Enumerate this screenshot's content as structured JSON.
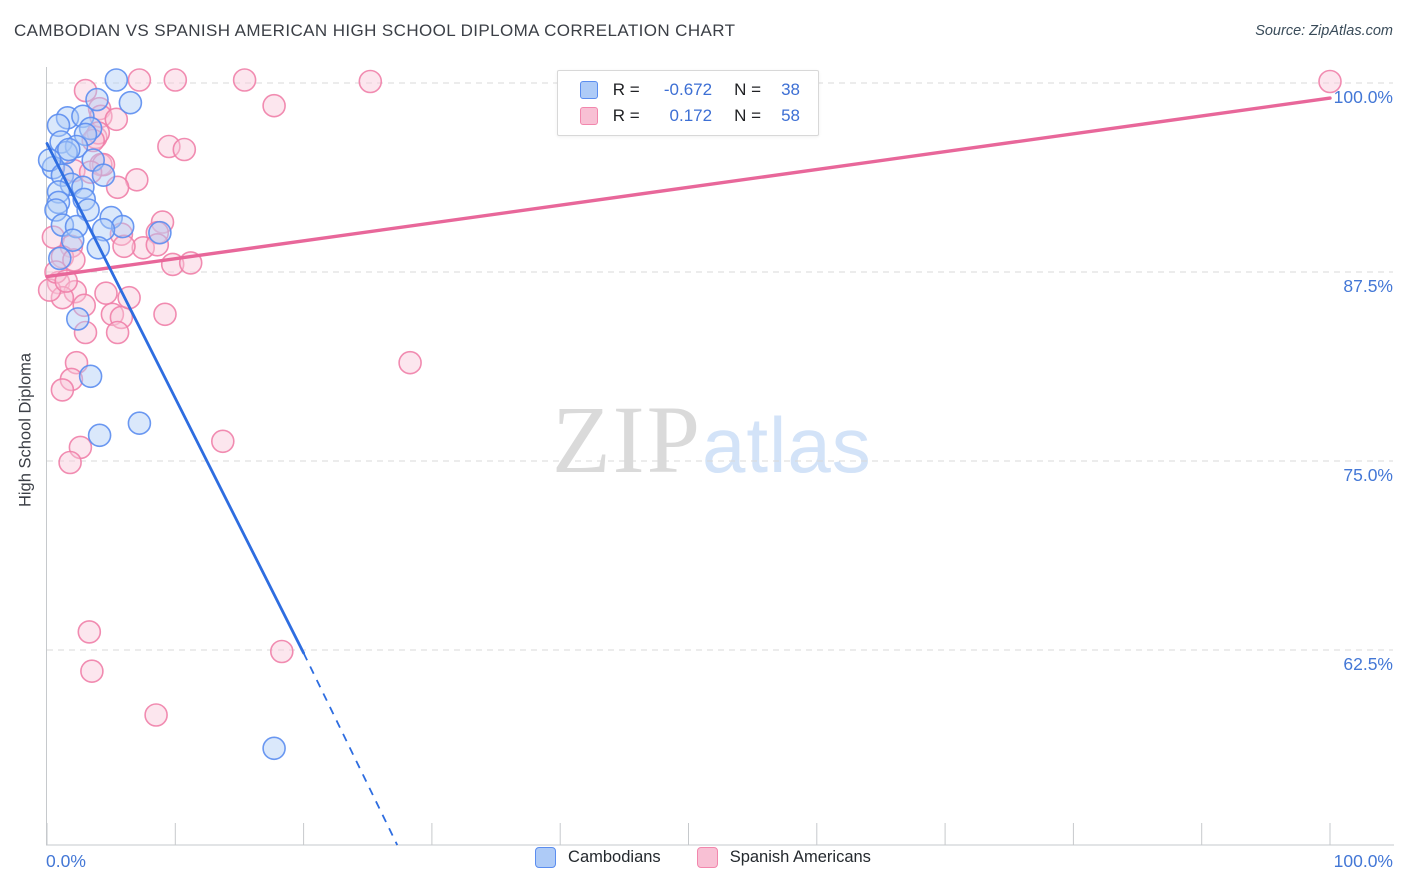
{
  "header": {
    "title": "CAMBODIAN VS SPANISH AMERICAN HIGH SCHOOL DIPLOMA CORRELATION CHART",
    "source": "Source: ZipAtlas.com"
  },
  "watermark": {
    "zip": "ZIP",
    "atlas": "atlas"
  },
  "stats_legend": {
    "rows": [
      {
        "series": "Cambodians",
        "r_label": "R =",
        "r_value": "-0.672",
        "n_label": "N =",
        "n_value": "38"
      },
      {
        "series": "Spanish Americans",
        "r_label": "R =",
        "r_value": "0.172",
        "n_label": "N =",
        "n_value": "58"
      }
    ]
  },
  "series_legend": {
    "items": [
      {
        "label": "Cambodians"
      },
      {
        "label": "Spanish Americans"
      }
    ]
  },
  "chart_data": {
    "type": "scatter",
    "title": "CAMBODIAN VS SPANISH AMERICAN HIGH SCHOOL DIPLOMA CORRELATION CHART",
    "xlabel": "",
    "ylabel": "High School Diploma",
    "x_range": [
      0,
      100
    ],
    "y_ticks": [
      {
        "value": 100.0,
        "label": "100.0%"
      },
      {
        "value": 87.5,
        "label": "87.5%"
      },
      {
        "value": 75.0,
        "label": "75.0%"
      },
      {
        "value": 62.5,
        "label": "62.5%"
      }
    ],
    "x_ticks": [
      {
        "value": 0,
        "label": "0.0%"
      },
      {
        "value": 100,
        "label": "100.0%"
      }
    ],
    "grid": "dashed-horizontal",
    "legend_position": "top-center and bottom-center",
    "series": [
      {
        "name": "Cambodians",
        "R": -0.672,
        "N": 38,
        "stroke": "#5b8def",
        "fill": "#aecbf7",
        "points": [
          [
            5.4,
            100.2
          ],
          [
            3.9,
            98.9
          ],
          [
            6.5,
            98.7
          ],
          [
            1.6,
            97.7
          ],
          [
            2.8,
            97.8
          ],
          [
            0.9,
            97.2
          ],
          [
            3.4,
            97.0
          ],
          [
            3.0,
            96.6
          ],
          [
            1.1,
            96.1
          ],
          [
            2.3,
            95.8
          ],
          [
            1.5,
            95.4
          ],
          [
            1.7,
            95.6
          ],
          [
            0.5,
            94.4
          ],
          [
            0.2,
            94.9
          ],
          [
            3.6,
            94.9
          ],
          [
            1.2,
            93.9
          ],
          [
            4.4,
            93.9
          ],
          [
            1.9,
            93.3
          ],
          [
            2.8,
            93.1
          ],
          [
            0.9,
            92.8
          ],
          [
            2.9,
            92.3
          ],
          [
            0.9,
            92.1
          ],
          [
            3.2,
            91.6
          ],
          [
            0.7,
            91.6
          ],
          [
            5.0,
            91.1
          ],
          [
            1.2,
            90.6
          ],
          [
            5.9,
            90.5
          ],
          [
            2.3,
            90.5
          ],
          [
            4.4,
            90.3
          ],
          [
            8.8,
            90.1
          ],
          [
            2.0,
            89.6
          ],
          [
            4.0,
            89.1
          ],
          [
            1.0,
            88.4
          ],
          [
            2.4,
            84.4
          ],
          [
            3.4,
            80.6
          ],
          [
            7.2,
            77.5
          ],
          [
            4.1,
            76.7
          ],
          [
            17.7,
            56.0
          ]
        ]
      },
      {
        "name": "Spanish Americans",
        "R": 0.172,
        "N": 58,
        "stroke": "#f080a8",
        "fill": "#f8c7d9",
        "points": [
          [
            7.2,
            100.2
          ],
          [
            10.0,
            100.2
          ],
          [
            15.4,
            100.2
          ],
          [
            25.2,
            100.1
          ],
          [
            100.0,
            100.1
          ],
          [
            17.7,
            98.5
          ],
          [
            4.1,
            98.3
          ],
          [
            3.0,
            99.5
          ],
          [
            4.2,
            97.8
          ],
          [
            5.4,
            97.6
          ],
          [
            3.8,
            96.4
          ],
          [
            4.0,
            96.7
          ],
          [
            3.6,
            96.2
          ],
          [
            9.5,
            95.8
          ],
          [
            10.7,
            95.6
          ],
          [
            4.2,
            94.6
          ],
          [
            4.4,
            94.6
          ],
          [
            2.1,
            94.2
          ],
          [
            3.4,
            94.1
          ],
          [
            7.0,
            93.6
          ],
          [
            5.5,
            93.1
          ],
          [
            9.0,
            90.8
          ],
          [
            8.6,
            90.1
          ],
          [
            5.8,
            90.0
          ],
          [
            0.5,
            89.8
          ],
          [
            7.5,
            89.1
          ],
          [
            8.6,
            89.3
          ],
          [
            6.0,
            89.2
          ],
          [
            1.9,
            89.2
          ],
          [
            9.8,
            88.0
          ],
          [
            11.2,
            88.1
          ],
          [
            1.2,
            88.5
          ],
          [
            2.1,
            88.3
          ],
          [
            0.9,
            86.8
          ],
          [
            2.2,
            86.2
          ],
          [
            1.2,
            85.8
          ],
          [
            2.9,
            85.3
          ],
          [
            5.1,
            84.7
          ],
          [
            5.8,
            84.5
          ],
          [
            9.2,
            84.7
          ],
          [
            3.0,
            83.5
          ],
          [
            5.5,
            83.5
          ],
          [
            2.3,
            81.5
          ],
          [
            1.9,
            80.4
          ],
          [
            1.2,
            79.7
          ],
          [
            28.3,
            81.5
          ],
          [
            2.6,
            75.9
          ],
          [
            1.8,
            74.9
          ],
          [
            13.7,
            76.3
          ],
          [
            3.3,
            63.7
          ],
          [
            18.3,
            62.4
          ],
          [
            3.5,
            61.1
          ],
          [
            8.5,
            58.2
          ],
          [
            0.2,
            86.3
          ],
          [
            0.7,
            87.5
          ],
          [
            1.5,
            86.9
          ],
          [
            4.6,
            86.1
          ],
          [
            6.4,
            85.8
          ]
        ]
      }
    ],
    "trend_lines": [
      {
        "series": "Cambodians",
        "color": "#2e6de0",
        "solid": [
          [
            0,
            96.0
          ],
          [
            20.0,
            62.3
          ]
        ],
        "dashed": [
          [
            20.0,
            62.3
          ],
          [
            27.3,
            49.6
          ]
        ]
      },
      {
        "series": "Spanish Americans",
        "color": "#e8679a",
        "solid": [
          [
            0,
            87.2
          ],
          [
            100,
            99.0
          ]
        ]
      }
    ]
  }
}
